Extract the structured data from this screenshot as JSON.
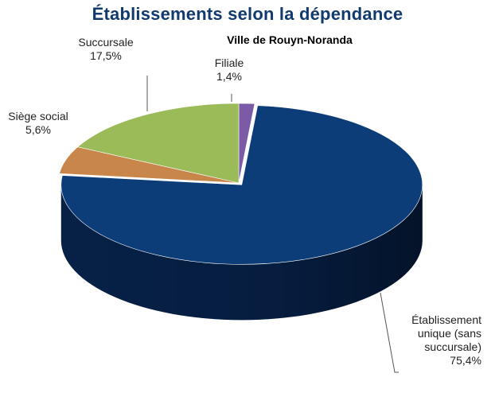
{
  "chart_data": {
    "type": "pie",
    "title": "Établissements selon la dépendance",
    "subtitle": "Ville de Rouyn-Noranda",
    "slices": [
      {
        "name": "Filiale",
        "value": 1.4,
        "label_lines": [
          "Filiale",
          "1,4%"
        ],
        "color": "#7b5aa6",
        "side_color": "#4a3468"
      },
      {
        "name": "Établissement unique (sans succursale)",
        "value": 75.4,
        "label_lines": [
          "Établissement",
          "unique (sans",
          "succursale)",
          "75,4%"
        ],
        "color": "#0d3d78",
        "side_color": "#07224a"
      },
      {
        "name": "Siège social",
        "value": 5.6,
        "label_lines": [
          "Siège social",
          "5,6%"
        ],
        "color": "#c8864a",
        "side_color": "#8a5528"
      },
      {
        "name": "Succursale",
        "value": 17.5,
        "label_lines": [
          "Succursale",
          "17,5%"
        ],
        "color": "#9bbb59",
        "side_color": "#66803a"
      }
    ],
    "start_angle_deg": 270,
    "three_d": true,
    "legend": "none"
  }
}
